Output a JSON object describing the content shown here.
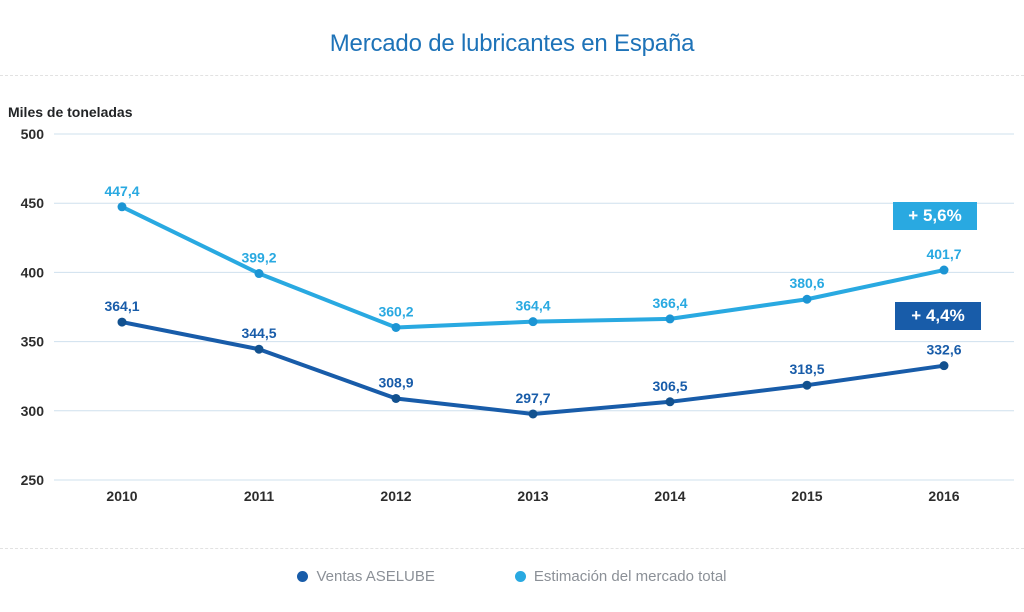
{
  "title": "Mercado de lubricantes en España",
  "y_axis_title": "Miles de toneladas",
  "badges": {
    "market_growth": "+ 5,6%",
    "aselube_growth": "+ 4,4%"
  },
  "legend": [
    {
      "label": "Ventas ASELUBE",
      "color": "#185ca9"
    },
    {
      "label": "Estimación del mercado total",
      "color": "#29a9e1"
    }
  ],
  "colors": {
    "title": "#1e73b8",
    "grid": "#cfe0ee",
    "tick_text": "#2d2d2d",
    "legend_text": "#8b9097",
    "dark_blue": "#185ca9",
    "dark_blue_marker": "#12518f",
    "light_blue": "#29a9e1",
    "light_blue_marker": "#1c95d4",
    "badge_light_bg": "#29a9e1",
    "badge_dark_bg": "#185ca9"
  },
  "chart_data": {
    "type": "line",
    "title": "Mercado de lubricantes en España",
    "xlabel": "",
    "ylabel": "Miles de toneladas",
    "categories": [
      "2010",
      "2011",
      "2012",
      "2013",
      "2014",
      "2015",
      "2016"
    ],
    "series": [
      {
        "id": "ventas-aselube",
        "name": "Ventas ASELUBE",
        "color": "#185ca9",
        "marker_color": "#12518f",
        "values": [
          364.1,
          344.5,
          308.9,
          297.7,
          306.5,
          318.5,
          332.6
        ],
        "labels": [
          "364,1",
          "344,5",
          "308,9",
          "297,7",
          "306,5",
          "318,5",
          "332,6"
        ],
        "growth_badge": "+ 4,4%"
      },
      {
        "id": "estimacion-mercado-total",
        "name": "Estimación del mercado total",
        "color": "#29a9e1",
        "marker_color": "#1c95d4",
        "values": [
          447.4,
          399.2,
          360.2,
          364.4,
          366.4,
          380.6,
          401.7
        ],
        "labels": [
          "447,4",
          "399,2",
          "360,2",
          "364,4",
          "366,4",
          "380,6",
          "401,7"
        ],
        "growth_badge": "+ 5,6%"
      }
    ],
    "ylim": [
      250,
      500
    ],
    "yticks": [
      500,
      450,
      400,
      350,
      300,
      250
    ],
    "grid": true,
    "legend_position": "bottom"
  }
}
